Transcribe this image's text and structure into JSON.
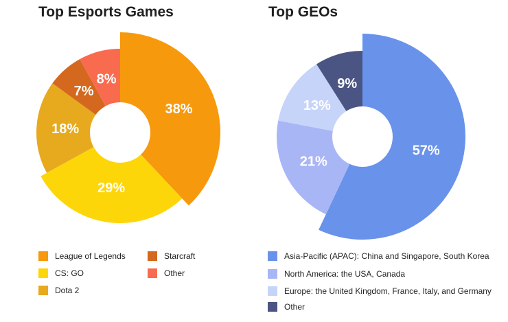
{
  "chart_data": [
    {
      "type": "pie",
      "title": "Top Esports Games",
      "slices": [
        {
          "name": "League of Legends",
          "value": 38,
          "label": "38%",
          "color": "#F7990C"
        },
        {
          "name": "CS: GO",
          "value": 29,
          "label": "29%",
          "color": "#FDD60A"
        },
        {
          "name": "Dota 2",
          "value": 18,
          "label": "18%",
          "color": "#E7A91D"
        },
        {
          "name": "Starcraft",
          "value": 7,
          "label": "7%",
          "color": "#D4681F"
        },
        {
          "name": "Other",
          "value": 8,
          "label": "8%",
          "color": "#F96B4F"
        }
      ],
      "legend_placement": "bottom"
    },
    {
      "type": "pie",
      "title": "Top GEOs",
      "slices": [
        {
          "name": "Asia-Pacific (APAC): China and Singapore, South Korea",
          "value": 57,
          "label": "57%",
          "color": "#6992EA"
        },
        {
          "name": "North America: the USA, Canada",
          "value": 21,
          "label": "21%",
          "color": "#A9B6F6"
        },
        {
          "name": "Europe: the United Kingdom, France, Italy, and Germany",
          "value": 13,
          "label": "13%",
          "color": "#C6D4F9"
        },
        {
          "name": "Other",
          "value": 9,
          "label": "9%",
          "color": "#4A5583"
        }
      ],
      "legend_placement": "bottom"
    }
  ]
}
